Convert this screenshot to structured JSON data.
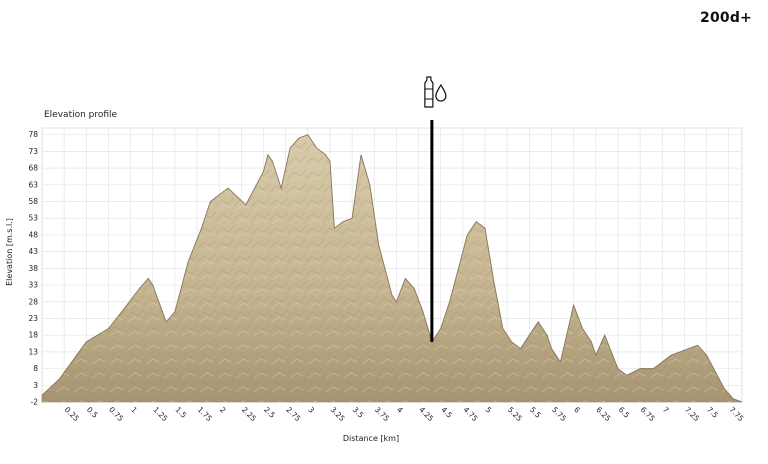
{
  "badge": "200d+",
  "marker": {
    "icon": "water-bottle-drop-icon",
    "x": 4.4
  },
  "colors": {
    "rock_light": "#d6c8a7",
    "rock_mid": "#bfae88",
    "rock_dark": "#8f7d5c",
    "grid": "#e4e4e4",
    "marker": "#000000"
  },
  "chart_data": {
    "type": "area",
    "title": "Elevation profile",
    "xlabel": "Distance [km]",
    "ylabel": "Elevation [m.s.l.]",
    "grid": true,
    "xlim": [
      0,
      7.9
    ],
    "ylim": [
      -2,
      80
    ],
    "x_ticks": [
      "0.25",
      "0.5",
      "0.75",
      "1",
      "1.25",
      "1.5",
      "1.75",
      "2",
      "2.25",
      "2.5",
      "2.75",
      "3",
      "3.25",
      "3.5",
      "3.75",
      "4",
      "4.25",
      "4.5",
      "4.75",
      "5",
      "5.25",
      "5.5",
      "5.75",
      "6",
      "6.25",
      "6.5",
      "6.75",
      "7",
      "7.25",
      "7.5",
      "7.75"
    ],
    "y_ticks": [
      "-2",
      "3",
      "8",
      "13",
      "18",
      "23",
      "28",
      "33",
      "38",
      "43",
      "48",
      "53",
      "58",
      "63",
      "68",
      "73",
      "78"
    ],
    "x": [
      0,
      0.2,
      0.5,
      0.75,
      0.9,
      1.1,
      1.2,
      1.25,
      1.4,
      1.5,
      1.65,
      1.8,
      1.9,
      2.0,
      2.1,
      2.3,
      2.5,
      2.55,
      2.6,
      2.7,
      2.8,
      2.9,
      3.0,
      3.1,
      3.2,
      3.25,
      3.3,
      3.4,
      3.5,
      3.6,
      3.7,
      3.8,
      3.9,
      3.95,
      4.0,
      4.1,
      4.2,
      4.3,
      4.4,
      4.5,
      4.6,
      4.7,
      4.8,
      4.9,
      5.0,
      5.1,
      5.2,
      5.3,
      5.4,
      5.5,
      5.6,
      5.7,
      5.75,
      5.85,
      6.0,
      6.1,
      6.2,
      6.25,
      6.35,
      6.5,
      6.6,
      6.75,
      6.9,
      7.0,
      7.1,
      7.2,
      7.3,
      7.4,
      7.5,
      7.6,
      7.7,
      7.8,
      7.9
    ],
    "y": [
      0,
      5,
      16,
      20,
      25,
      32,
      35,
      33,
      22,
      25,
      40,
      50,
      58,
      60,
      62,
      57,
      67,
      72,
      70,
      62,
      74,
      77,
      78,
      74,
      72,
      70,
      50,
      52,
      53,
      72,
      63,
      45,
      35,
      30,
      28,
      35,
      32,
      25,
      16,
      20,
      28,
      38,
      48,
      52,
      50,
      34,
      20,
      16,
      14,
      18,
      22,
      18,
      14,
      10,
      27,
      20,
      16,
      12,
      18,
      8,
      6,
      8,
      8,
      10,
      12,
      13,
      14,
      15,
      12,
      7,
      2,
      -1,
      -2
    ]
  }
}
